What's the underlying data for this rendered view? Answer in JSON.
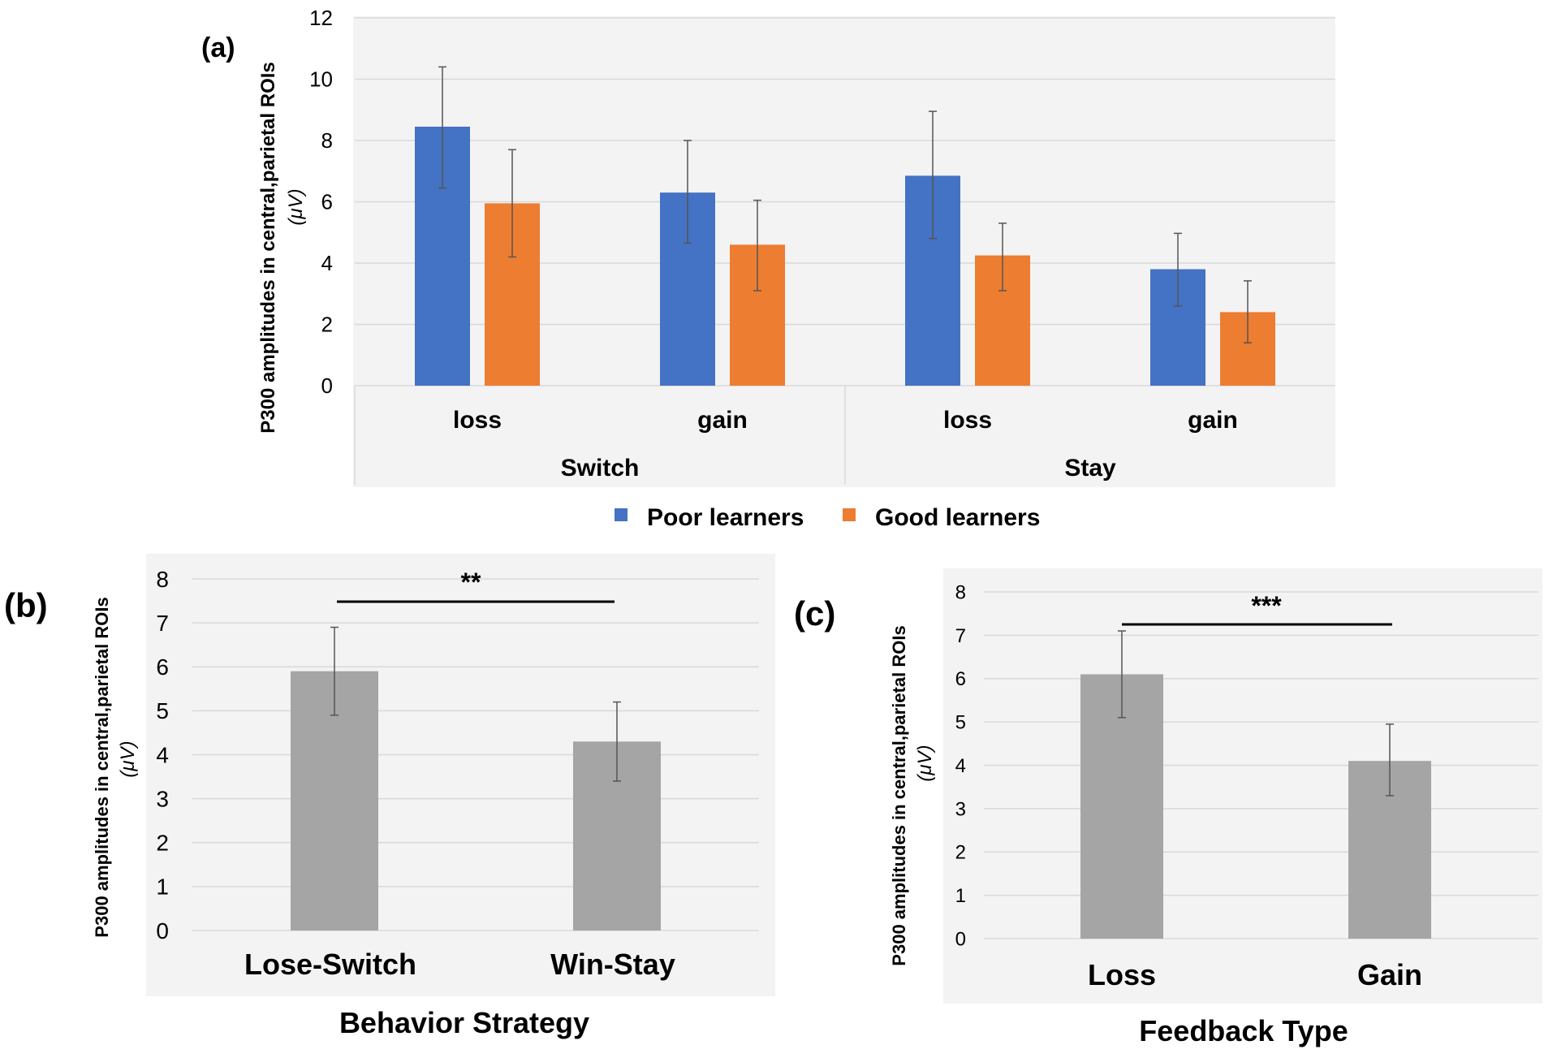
{
  "chart_data": [
    {
      "panel_label": "(a)",
      "type": "bar",
      "ylabel": "P300 amplitudes in central,parietal ROIs",
      "ylabel_unit": "(μV)",
      "ylim": [
        0,
        12
      ],
      "yticks": [
        0,
        2,
        4,
        6,
        8,
        10,
        12
      ],
      "grid": true,
      "legend_position": "bottom",
      "groups": [
        "Switch",
        "Stay"
      ],
      "categories": [
        "loss",
        "gain",
        "loss",
        "gain"
      ],
      "series": [
        {
          "name": "Poor learners",
          "color": "#4472C4",
          "values": [
            8.45,
            6.3,
            6.85,
            3.8
          ],
          "err_low": [
            6.45,
            4.65,
            4.8,
            2.6
          ],
          "err_high": [
            10.4,
            8.0,
            8.95,
            4.97
          ]
        },
        {
          "name": "Good learners",
          "color": "#ED7D31",
          "values": [
            5.95,
            4.6,
            4.25,
            2.4
          ],
          "err_low": [
            4.2,
            3.1,
            3.1,
            1.4
          ],
          "err_high": [
            7.7,
            6.05,
            5.3,
            3.42
          ]
        }
      ]
    },
    {
      "panel_label": "(b)",
      "type": "bar",
      "ylabel": "P300 amplitudes in central,parietal ROIs",
      "ylabel_unit": "(μV)",
      "xlabel": "Behavior Strategy",
      "ylim": [
        0,
        8
      ],
      "yticks": [
        0,
        1,
        2,
        3,
        4,
        5,
        6,
        7,
        8
      ],
      "grid": true,
      "categories": [
        "Lose-Switch",
        "Win-Stay"
      ],
      "values": [
        5.9,
        4.3
      ],
      "err_low": [
        4.9,
        3.4
      ],
      "err_high": [
        6.9,
        5.2
      ],
      "color": "#A5A5A5",
      "significance": "**"
    },
    {
      "panel_label": "(c)",
      "type": "bar",
      "ylabel": "P300 amplitudes in central,parietal ROIs",
      "ylabel_unit": "(μV)",
      "xlabel": "Feedback Type",
      "ylim": [
        0,
        8
      ],
      "yticks": [
        0,
        1,
        2,
        3,
        4,
        5,
        6,
        7,
        8
      ],
      "grid": true,
      "categories": [
        "Loss",
        "Gain"
      ],
      "values": [
        6.1,
        4.1
      ],
      "err_low": [
        5.1,
        3.3
      ],
      "err_high": [
        7.1,
        4.95
      ],
      "color": "#A5A5A5",
      "significance": "***"
    }
  ]
}
